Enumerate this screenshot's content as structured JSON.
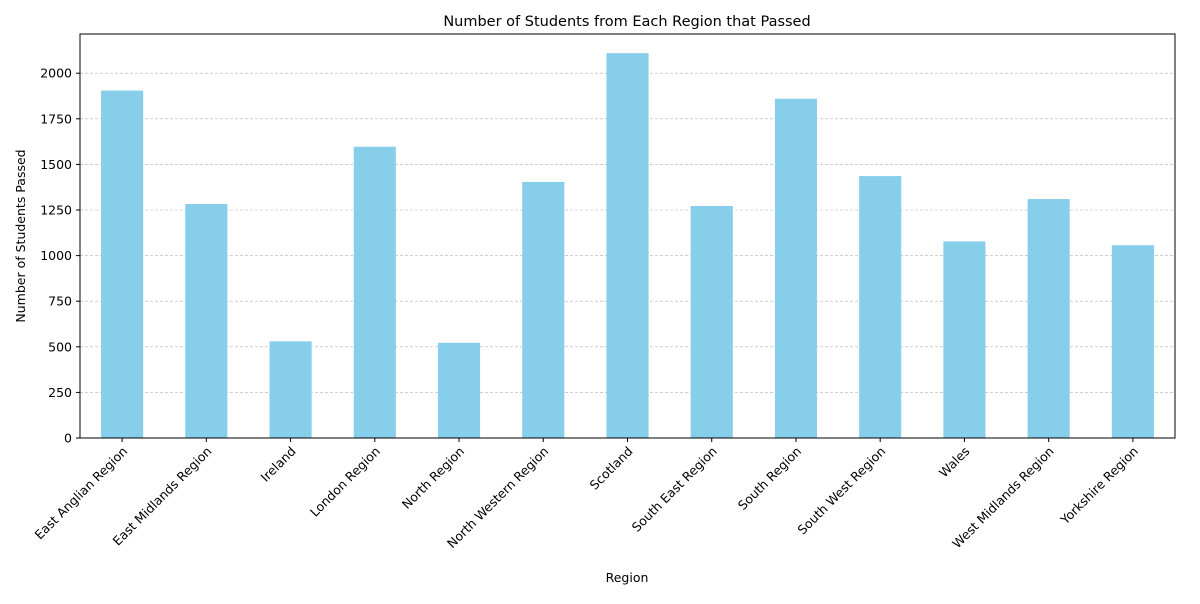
{
  "chart_data": {
    "type": "bar",
    "title": "Number of Students from Each Region that Passed",
    "xlabel": "Region",
    "ylabel": "Number of Students Passed",
    "categories": [
      "East Anglian Region",
      "East Midlands Region",
      "Ireland",
      "London Region",
      "North Region",
      "North Western Region",
      "Scotland",
      "South East Region",
      "South Region",
      "South West Region",
      "Wales",
      "West Midlands Region",
      "Yorkshire Region"
    ],
    "values": [
      1905,
      1283,
      530,
      1597,
      522,
      1404,
      2110,
      1272,
      1860,
      1436,
      1078,
      1310,
      1057
    ],
    "ylim": [
      0,
      2215
    ],
    "yticks": [
      0,
      250,
      500,
      750,
      1000,
      1250,
      1500,
      1750,
      2000
    ],
    "grid": "y-dashed",
    "bar_color": "#87ceeb",
    "grid_color": "#b0b0b0"
  }
}
